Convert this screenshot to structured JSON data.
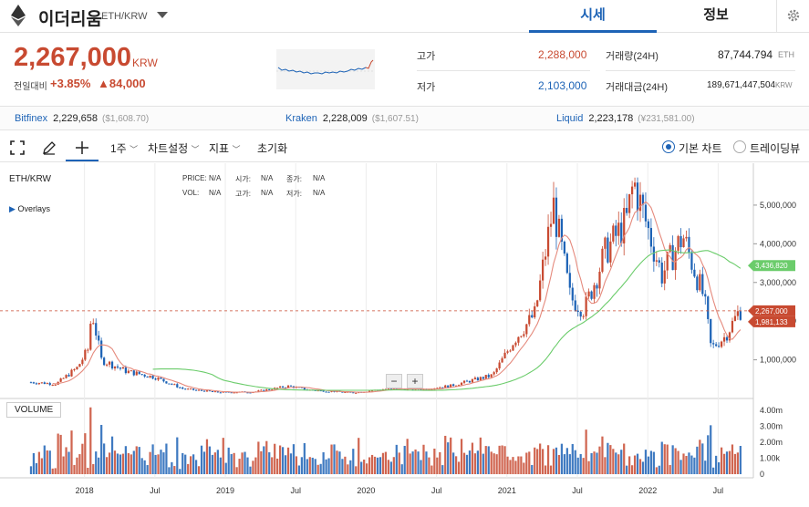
{
  "header": {
    "coin_name": "이더리움",
    "pair": "ETH/KRW",
    "tabs": [
      {
        "label": "시세",
        "active": true
      },
      {
        "label": "정보",
        "active": false
      }
    ]
  },
  "ticker": {
    "price": "2,267,000",
    "currency": "KRW",
    "change_label": "전일대비",
    "change_pct": "+3.85%",
    "change_amt": "▲84,000"
  },
  "stats": {
    "high_label": "고가",
    "high": "2,288,000",
    "low_label": "저가",
    "low": "2,103,000",
    "vol_label": "거래량(24H)",
    "vol": "87,744.794",
    "vol_unit": "ETH",
    "amt_label": "거래대금(24H)",
    "amt": "189,671,447,504",
    "amt_unit": "KRW"
  },
  "exchanges": [
    {
      "name": "Bitfinex",
      "price": "2,229,658",
      "usd": "($1,608.70)"
    },
    {
      "name": "Kraken",
      "price": "2,228,009",
      "usd": "($1,607.51)"
    },
    {
      "name": "Liquid",
      "price": "2,223,178",
      "usd": "(¥231,581.00)"
    }
  ],
  "toolbar": {
    "interval": "1주",
    "settings": "차트설정",
    "indicator": "지표",
    "reset": "초기화",
    "view_basic": "기본 차트",
    "view_tv": "트레이딩뷰"
  },
  "chart_info": {
    "pair": "ETH/KRW",
    "overlays": "Overlays",
    "price_l": "PRICE:",
    "price_v": "N/A",
    "vol_l": "VOL:",
    "vol_v": "N/A",
    "open_l": "시가:",
    "open_v": "N/A",
    "high_l": "고가:",
    "high_v": "N/A",
    "close_l": "종가:",
    "close_v": "N/A",
    "low_l": "저가:",
    "low_v": "N/A",
    "volume_tab": "VOLUME"
  },
  "colors": {
    "up": "#c84a31",
    "down": "#1d63b6",
    "ma_short": "#e58a7d",
    "ma_long": "#6bcc6b",
    "accent": "#1d63b6"
  },
  "chart_data": {
    "type": "candlestick",
    "x_ticks": [
      "2018",
      "Jul",
      "2019",
      "Jul",
      "2020",
      "Jul",
      "2021",
      "Jul",
      "2022",
      "Jul"
    ],
    "y_ticks": [
      "5,000,000",
      "4,000,000",
      "3,000,000",
      "2,000,000",
      "1,000,000"
    ],
    "vol_ticks": [
      "4.00m",
      "3.00m",
      "2.00m",
      "1.00k",
      "0"
    ],
    "ylim": [
      0,
      5800000
    ],
    "price_markers": [
      {
        "label": "3,436,820",
        "value": 3436820,
        "color": "#6bcc6b"
      },
      {
        "label": "2,267,000",
        "value": 2267000,
        "color": "#c84a31"
      },
      {
        "label": "1,981,133",
        "value": 1981133,
        "color": "#c84a31"
      }
    ],
    "close_series": [
      {
        "t": 2017.62,
        "v": 420000
      },
      {
        "t": 2017.8,
        "v": 380000
      },
      {
        "t": 2017.95,
        "v": 800000
      },
      {
        "t": 2018.03,
        "v": 1300000
      },
      {
        "t": 2018.05,
        "v": 2300000
      },
      {
        "t": 2018.12,
        "v": 1000000
      },
      {
        "t": 2018.3,
        "v": 700000
      },
      {
        "t": 2018.5,
        "v": 550000
      },
      {
        "t": 2018.7,
        "v": 250000
      },
      {
        "t": 2018.95,
        "v": 160000
      },
      {
        "t": 2019.2,
        "v": 170000
      },
      {
        "t": 2019.45,
        "v": 320000
      },
      {
        "t": 2019.6,
        "v": 220000
      },
      {
        "t": 2019.9,
        "v": 150000
      },
      {
        "t": 2020.15,
        "v": 250000
      },
      {
        "t": 2020.4,
        "v": 240000
      },
      {
        "t": 2020.6,
        "v": 330000
      },
      {
        "t": 2020.9,
        "v": 600000
      },
      {
        "t": 2021.05,
        "v": 1500000
      },
      {
        "t": 2021.2,
        "v": 2200000
      },
      {
        "t": 2021.33,
        "v": 5000000
      },
      {
        "t": 2021.45,
        "v": 2600000
      },
      {
        "t": 2021.55,
        "v": 2300000
      },
      {
        "t": 2021.7,
        "v": 3800000
      },
      {
        "t": 2021.85,
        "v": 4600000
      },
      {
        "t": 2021.9,
        "v": 5600000
      },
      {
        "t": 2022.0,
        "v": 4400000
      },
      {
        "t": 2022.1,
        "v": 3200000
      },
      {
        "t": 2022.25,
        "v": 4200000
      },
      {
        "t": 2022.4,
        "v": 2600000
      },
      {
        "t": 2022.45,
        "v": 1300000
      },
      {
        "t": 2022.55,
        "v": 1600000
      },
      {
        "t": 2022.65,
        "v": 2267000
      }
    ]
  }
}
